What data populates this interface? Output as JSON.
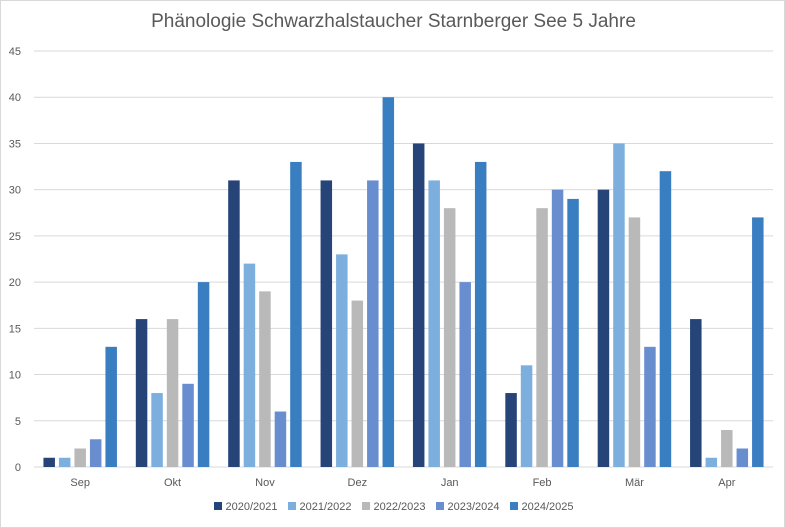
{
  "chart_data": {
    "type": "bar",
    "title": "Phänologie Schwarzhalstaucher Starnberger See  5 Jahre",
    "xlabel": "",
    "ylabel": "",
    "categories": [
      "Sep",
      "Okt",
      "Nov",
      "Dez",
      "Jan",
      "Feb",
      "Mär",
      "Apr"
    ],
    "ylim": [
      0,
      45
    ],
    "yticks": [
      0,
      5,
      10,
      15,
      20,
      25,
      30,
      35,
      40,
      45
    ],
    "grid": true,
    "legend_position": "bottom",
    "series": [
      {
        "name": "2020/2021",
        "color": "#264478",
        "values": [
          1,
          16,
          31,
          31,
          35,
          8,
          30,
          16
        ]
      },
      {
        "name": "2021/2022",
        "color": "#7cafdd",
        "values": [
          1,
          8,
          22,
          23,
          31,
          11,
          35,
          1
        ]
      },
      {
        "name": "2022/2023",
        "color": "#b9b9b9",
        "values": [
          2,
          16,
          19,
          18,
          28,
          28,
          27,
          4
        ]
      },
      {
        "name": "2023/2024",
        "color": "#698ed0",
        "values": [
          3,
          9,
          6,
          31,
          20,
          30,
          13,
          2
        ]
      },
      {
        "name": "2024/2025",
        "color": "#3a7ec2",
        "values": [
          13,
          20,
          33,
          40,
          33,
          29,
          32,
          27
        ]
      }
    ]
  }
}
